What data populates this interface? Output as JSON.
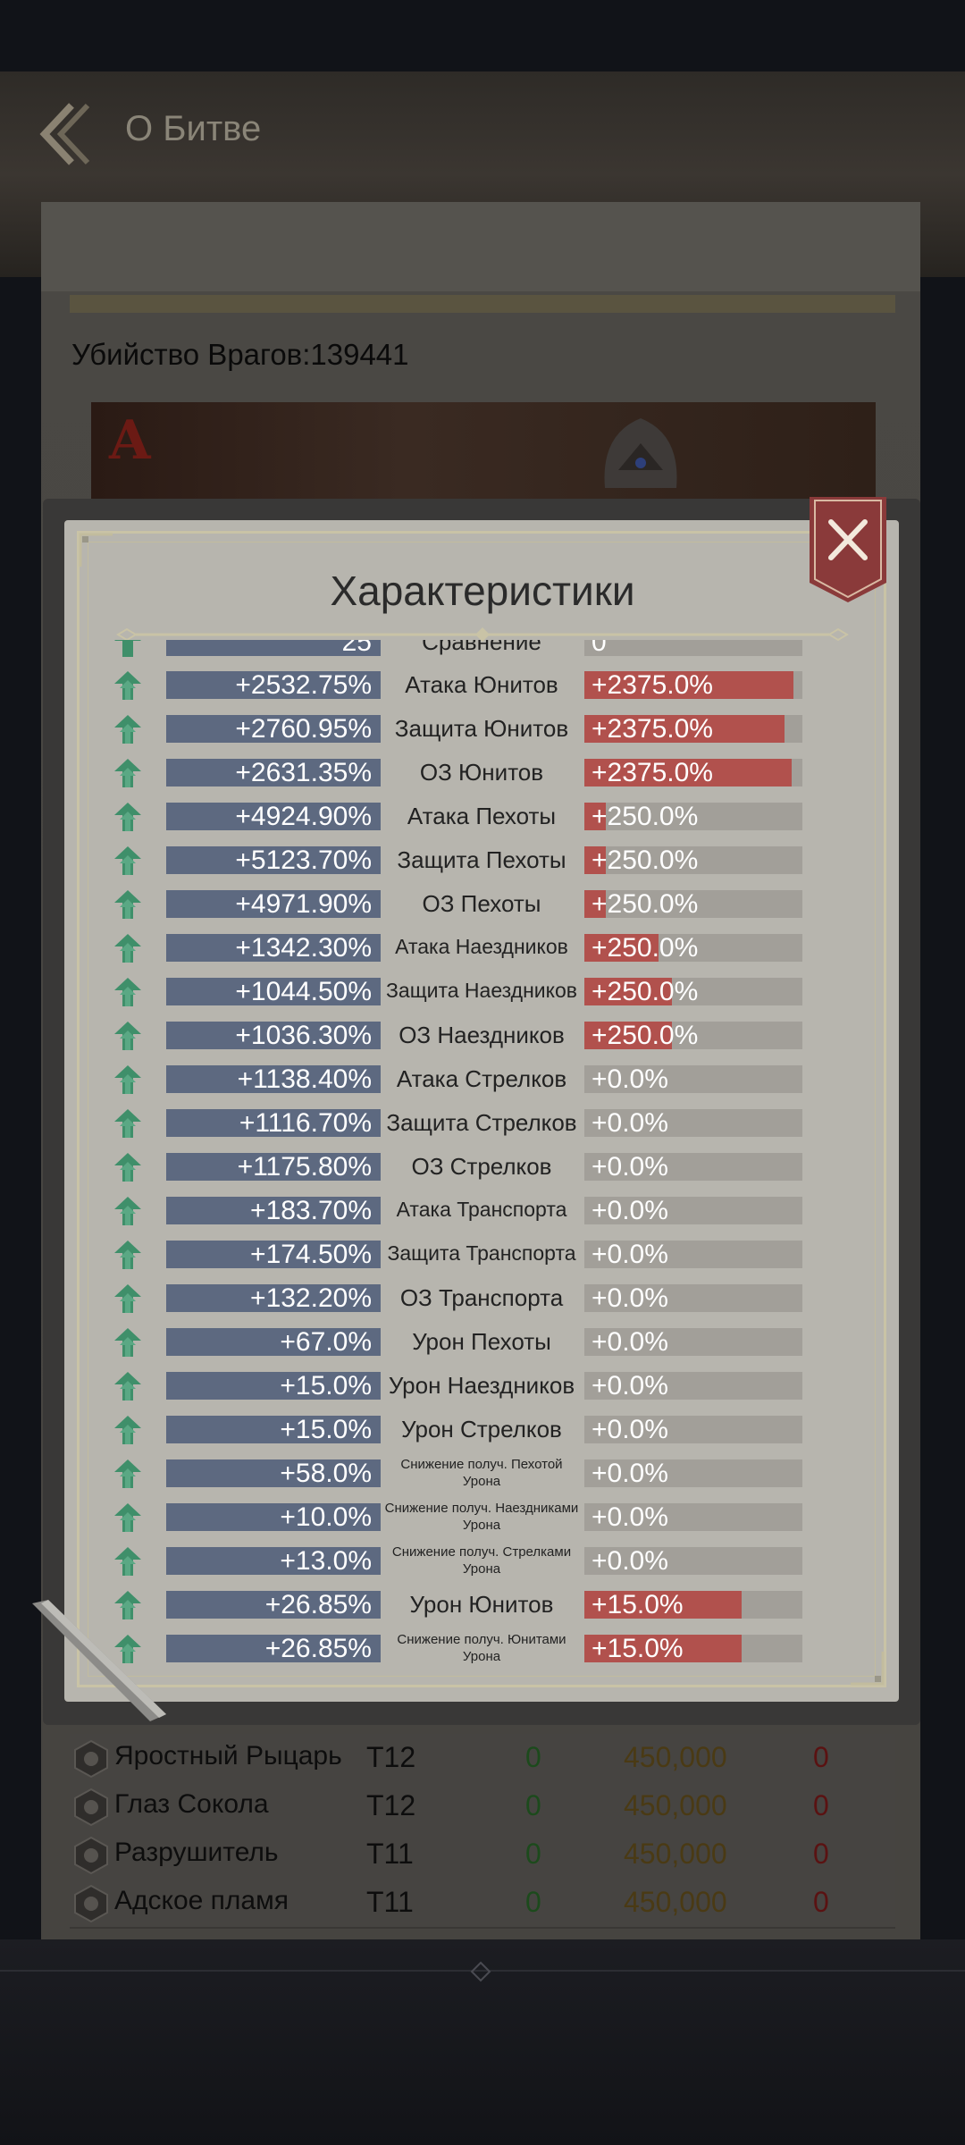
{
  "header": {
    "title": "О Битве"
  },
  "battle": {
    "kills_text": "Убийство Врагов:139441",
    "banner_letter": "A"
  },
  "units": [
    {
      "name": "Яростный Рыцарь",
      "tier": "T12",
      "a": "0",
      "count": "450,000",
      "loss": "0"
    },
    {
      "name": "Глаз Сокола",
      "tier": "T12",
      "a": "0",
      "count": "450,000",
      "loss": "0"
    },
    {
      "name": "Разрушитель",
      "tier": "T11",
      "a": "0",
      "count": "450,000",
      "loss": "0"
    },
    {
      "name": "Адское пламя",
      "tier": "T11",
      "a": "0",
      "count": "450,000",
      "loss": "0"
    }
  ],
  "modal": {
    "title": "Характеристики",
    "partial_row": {
      "left": "25",
      "name": "Сравнение",
      "right": "0"
    },
    "stats": [
      {
        "left": "+2532.75%",
        "name": "Атака Юнитов",
        "right": "+2375.0%",
        "right_fill": 0.96,
        "size": "normal"
      },
      {
        "left": "+2760.95%",
        "name": "Защита Юнитов",
        "right": "+2375.0%",
        "right_fill": 0.92,
        "size": "normal"
      },
      {
        "left": "+2631.35%",
        "name": "ОЗ Юнитов",
        "right": "+2375.0%",
        "right_fill": 0.95,
        "size": "normal"
      },
      {
        "left": "+4924.90%",
        "name": "Атака Пехоты",
        "right": "+250.0%",
        "right_fill": 0.1,
        "size": "normal"
      },
      {
        "left": "+5123.70%",
        "name": "Защита Пехоты",
        "right": "+250.0%",
        "right_fill": 0.1,
        "size": "normal"
      },
      {
        "left": "+4971.90%",
        "name": "ОЗ Пехоты",
        "right": "+250.0%",
        "right_fill": 0.1,
        "size": "normal"
      },
      {
        "left": "+1342.30%",
        "name": "Атака Наездников",
        "right": "+250.0%",
        "right_fill": 0.34,
        "size": "small"
      },
      {
        "left": "+1044.50%",
        "name": "Защита Наездников",
        "right": "+250.0%",
        "right_fill": 0.4,
        "size": "small"
      },
      {
        "left": "+1036.30%",
        "name": "ОЗ Наездников",
        "right": "+250.0%",
        "right_fill": 0.4,
        "size": "normal"
      },
      {
        "left": "+1138.40%",
        "name": "Атака Стрелков",
        "right": "+0.0%",
        "right_fill": 0,
        "size": "normal"
      },
      {
        "left": "+1116.70%",
        "name": "Защита Стрелков",
        "right": "+0.0%",
        "right_fill": 0,
        "size": "normal"
      },
      {
        "left": "+1175.80%",
        "name": "ОЗ Стрелков",
        "right": "+0.0%",
        "right_fill": 0,
        "size": "normal"
      },
      {
        "left": "+183.70%",
        "name": "Атака Транспорта",
        "right": "+0.0%",
        "right_fill": 0,
        "size": "small"
      },
      {
        "left": "+174.50%",
        "name": "Защита Транспорта",
        "right": "+0.0%",
        "right_fill": 0,
        "size": "small"
      },
      {
        "left": "+132.20%",
        "name": "ОЗ Транспорта",
        "right": "+0.0%",
        "right_fill": 0,
        "size": "normal"
      },
      {
        "left": "+67.0%",
        "name": "Урон Пехоты",
        "right": "+0.0%",
        "right_fill": 0,
        "size": "normal"
      },
      {
        "left": "+15.0%",
        "name": "Урон Наездников",
        "right": "+0.0%",
        "right_fill": 0,
        "size": "normal"
      },
      {
        "left": "+15.0%",
        "name": "Урон Стрелков",
        "right": "+0.0%",
        "right_fill": 0,
        "size": "normal"
      },
      {
        "left": "+58.0%",
        "name": "Снижение получ. Пехотой Урона",
        "right": "+0.0%",
        "right_fill": 0,
        "size": "tiny"
      },
      {
        "left": "+10.0%",
        "name": "Снижение получ. Наездниками Урона",
        "right": "+0.0%",
        "right_fill": 0,
        "size": "tiny"
      },
      {
        "left": "+13.0%",
        "name": "Снижение получ. Стрелками Урона",
        "right": "+0.0%",
        "right_fill": 0,
        "size": "tiny"
      },
      {
        "left": "+26.85%",
        "name": "Урон Юнитов",
        "right": "+15.0%",
        "right_fill": 0.72,
        "size": "normal"
      },
      {
        "left": "+26.85%",
        "name": "Снижение получ. Юнитами Урона",
        "right": "+15.0%",
        "right_fill": 0.72,
        "size": "tiny"
      }
    ]
  },
  "colors": {
    "stat_bar": "#5d6980",
    "compare_fill": "#b1514d",
    "up_arrow": "#3f8f6a",
    "modal_bg": "#b7b5ae"
  }
}
